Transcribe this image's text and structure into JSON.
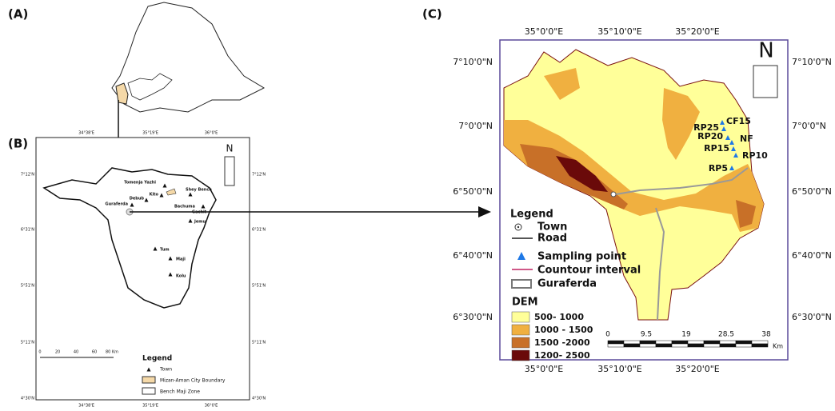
{
  "panel_a": {
    "label": "(A)"
  },
  "panel_b": {
    "label": "(B)",
    "lat_labels": [
      "7°12'N",
      "6°31'N",
      "5°51'N",
      "5°11'N",
      "4°30'N"
    ],
    "lon_labels": [
      "34°38'E",
      "35°19'E",
      "36°0'E"
    ],
    "north": "N",
    "towns": [
      "Tomenja Yazhi",
      "Shey Bench",
      "Kito",
      "Debub",
      "Guraferda",
      "Bachuma",
      "Gachit",
      "Jemu",
      "Tum",
      "Maji",
      "Kolu"
    ],
    "scale": [
      "0",
      "20",
      "40",
      "60",
      "80 Km"
    ],
    "legend": {
      "title": "Legend",
      "items": [
        "Town",
        "Mizan-Aman City Boundary",
        "Bench Maji Zone"
      ]
    }
  },
  "panel_c": {
    "label": "(C)",
    "lat_labels": [
      "7°10'0\"N",
      "7°0'0\"N",
      "6°50'0\"N",
      "6°40'0\"N",
      "6°30'0\"N"
    ],
    "lon_labels": [
      "35°0'0\"E",
      "35°10'0\"E",
      "35°20'0\"E"
    ],
    "north": "N",
    "sampling_points": [
      "CF15",
      "RP25",
      "RP20",
      "NF",
      "RP15",
      "RP10",
      "RP5"
    ],
    "legend": {
      "title": "Legend",
      "items": [
        "Town",
        "Road",
        "Sampling point",
        "Countour interval",
        "Guraferda"
      ],
      "dem_title": "DEM",
      "dem_classes": [
        "500- 1000",
        "1000 - 1500",
        "1500 -2000",
        "1200- 2500"
      ]
    },
    "scale": [
      "0",
      "9.5",
      "19",
      "28.5",
      "38"
    ],
    "scale_unit": "Km"
  }
}
